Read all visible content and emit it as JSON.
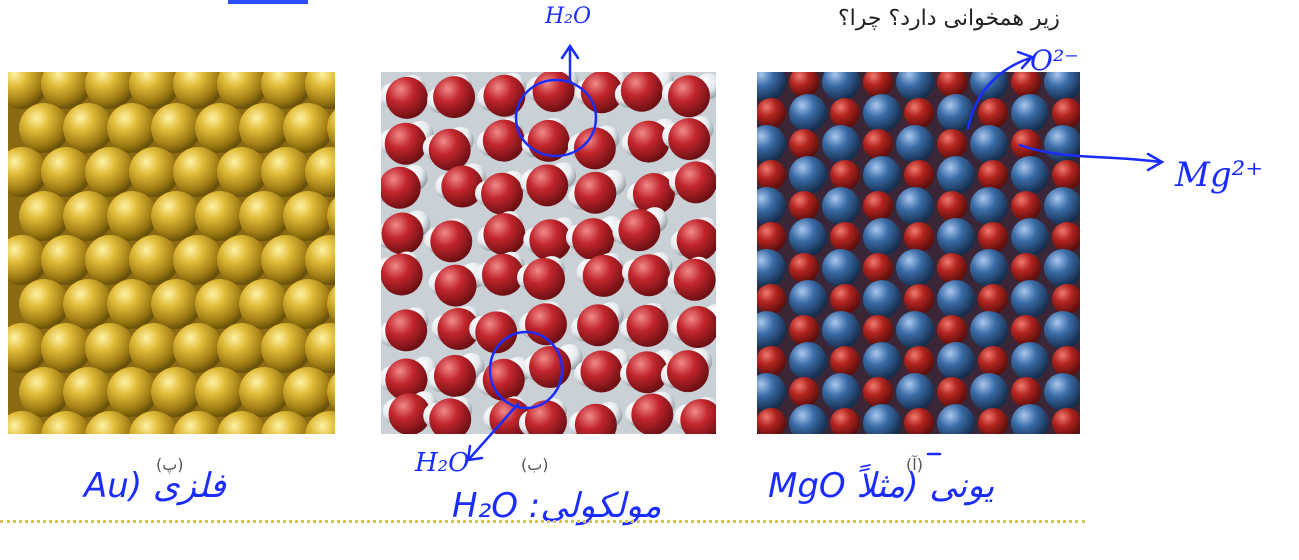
{
  "question_text": "زیر همخوانی دارد؟ چرا؟",
  "captions": {
    "gold": "(پ)",
    "water": "(ب)",
    "mgo": "(آ)"
  },
  "annotations": {
    "water_top": "H₂O",
    "water_bottom": "H₂O",
    "oxide_ion": "O²⁻",
    "mg_ion": "Mg²⁺",
    "gold_label": "فلزی (Au",
    "water_label": "مولکولی: H₂O",
    "mgo_label": "یونی (مثلاً MgO"
  },
  "colors": {
    "ink": "#1a2cff",
    "gold": "#c9a21e",
    "water_red": "#b8242a",
    "water_white": "#f2f4f6",
    "mgo_red": "#b3241f",
    "mgo_blue": "#2f5f97",
    "divider": "#d9c25a"
  }
}
